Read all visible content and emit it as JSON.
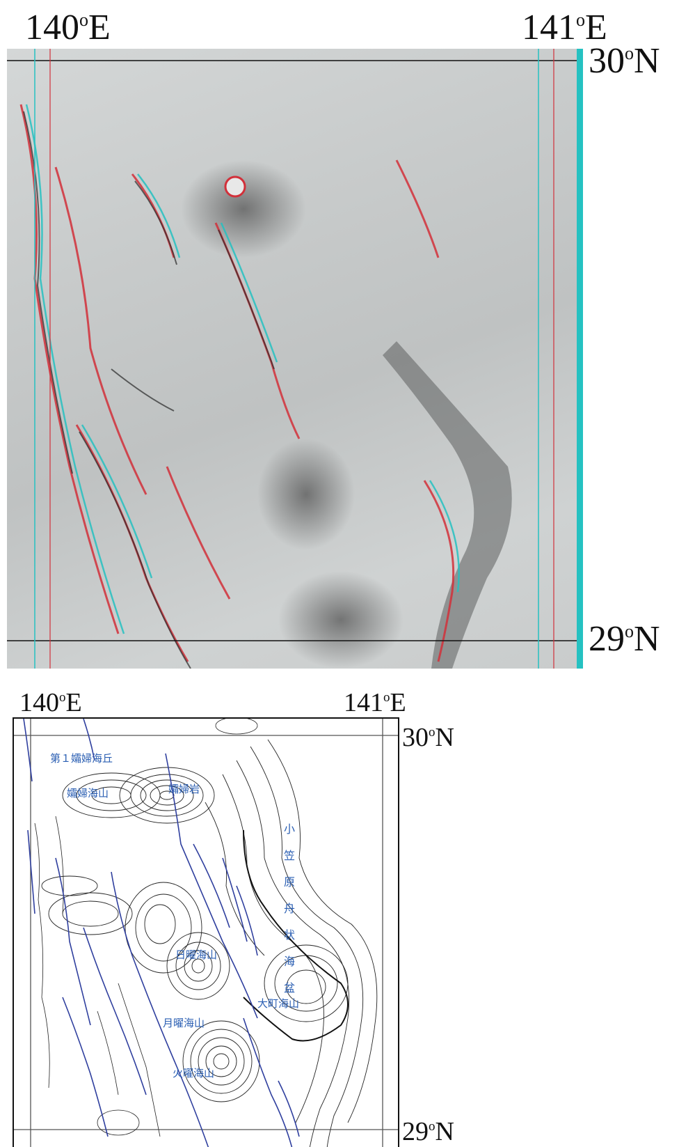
{
  "top_map": {
    "lon_left": {
      "value": "140",
      "deg": "o",
      "hemi": "E"
    },
    "lon_right": {
      "value": "141",
      "deg": "o",
      "hemi": "E"
    },
    "lat_top": {
      "value": "30",
      "deg": "o",
      "hemi": "N"
    },
    "lat_bottom": {
      "value": "29",
      "deg": "o",
      "hemi": "N"
    },
    "colors": {
      "red": "#d2303a",
      "cyan": "#25c1c1",
      "relief": "#c9cccc"
    }
  },
  "bottom_map": {
    "lon_left": {
      "value": "140",
      "deg": "o",
      "hemi": "E"
    },
    "lon_right": {
      "value": "141",
      "deg": "o",
      "hemi": "E"
    },
    "lat_top": {
      "value": "30",
      "deg": "o",
      "hemi": "N"
    },
    "lat_bottom": {
      "value": "29",
      "deg": "o",
      "hemi": "N"
    },
    "place_names": [
      "第１孀婦海丘",
      "孀婦海山",
      "孀婦岩",
      "小笠原舟状海盆",
      "日曜海山",
      "大町海山",
      "月曜海山",
      "火曜海山"
    ],
    "colors": {
      "contour": "#222222",
      "fault": "#2f3f9e",
      "label": "#2b5fb3"
    }
  }
}
